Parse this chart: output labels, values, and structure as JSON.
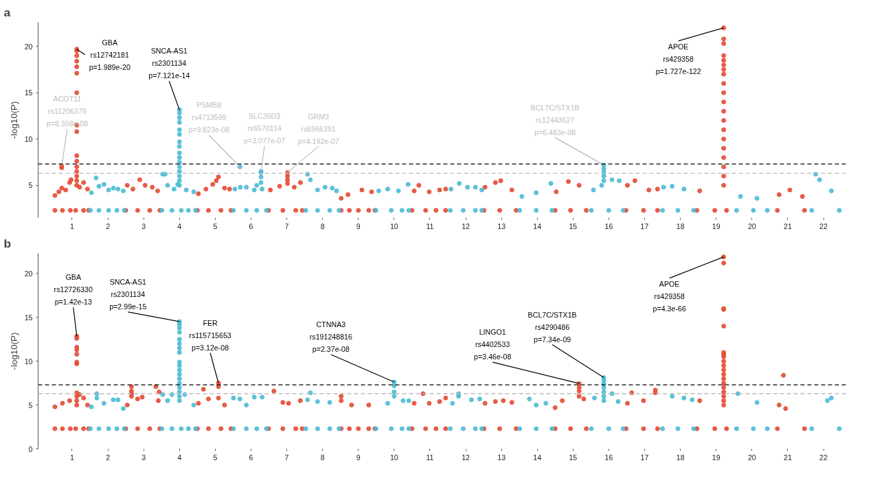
{
  "chart_data": [
    {
      "type": "scatter",
      "title": "a",
      "ylabel": "-log10(P)",
      "marker": "circle",
      "xlim": [
        0.05,
        22.7
      ],
      "ylim": [
        1.5,
        22.6
      ],
      "yticks": [
        5,
        10,
        15,
        20
      ],
      "xticks": [
        1,
        2,
        3,
        4,
        5,
        6,
        7,
        8,
        9,
        10,
        11,
        12,
        13,
        14,
        15,
        16,
        17,
        18,
        19,
        20,
        21,
        22
      ],
      "series": [
        {
          "color": "#e64b35",
          "x": [
            0.52,
            0.73,
            0.95,
            1.1,
            1.32,
            1.46,
            0.52,
            0.63,
            0.71,
            0.82,
            0.93,
            0.97,
            0.71,
            0.71,
            1.13,
            1.13,
            1.13,
            1.13,
            1.13,
            1.13,
            1.13,
            1.13,
            1.13,
            1.13,
            1.13,
            1.13,
            1.13,
            1.13,
            1.13,
            1.13,
            1.21,
            1.32,
            1.43,
            2.5,
            2.83,
            3.17,
            3.45,
            2.54,
            2.7,
            2.89,
            3.04,
            3.24,
            3.39,
            4.5,
            4.81,
            5.16,
            5.44,
            4.53,
            4.74,
            4.93,
            5.03,
            5.09,
            5.26,
            5.4,
            6.49,
            6.89,
            7.25,
            7.43,
            6.54,
            6.8,
            7.02,
            7.02,
            7.02,
            7.02,
            7.21,
            7.38,
            8.52,
            8.75,
            9.0,
            9.29,
            9.46,
            8.52,
            8.71,
            9.1,
            9.37,
            10.5,
            10.88,
            11.17,
            11.44,
            10.56,
            10.69,
            10.98,
            11.27,
            11.44,
            12.51,
            12.95,
            13.41,
            12.54,
            12.83,
            12.98,
            13.29,
            14.5,
            14.93,
            15.37,
            14.53,
            14.87,
            15.17,
            16.48,
            16.97,
            17.36,
            16.52,
            16.73,
            17.12,
            17.36,
            18.46,
            18.96,
            19.29,
            18.54,
            19.21,
            19.21,
            19.21,
            19.21,
            19.21,
            19.21,
            19.21,
            19.21,
            19.21,
            19.21,
            19.21,
            19.21,
            19.21,
            19.21,
            19.21,
            19.21,
            19.21,
            19.21,
            19.21,
            19.21,
            20.71,
            21.47,
            20.76,
            21.06,
            21.41
          ],
          "values": [
            2.3,
            2.3,
            2.3,
            2.3,
            2.3,
            2.3,
            3.9,
            4.3,
            4.7,
            4.5,
            5.3,
            5.6,
            7.08,
            6.9,
            19.7,
            19.5,
            19.0,
            18.4,
            17.8,
            17.1,
            15.0,
            11.5,
            10.8,
            8.2,
            7.6,
            7.0,
            6.5,
            6.0,
            5.5,
            5.0,
            4.8,
            5.3,
            4.6,
            2.3,
            2.3,
            2.3,
            2.3,
            5.0,
            4.6,
            5.6,
            5.0,
            4.8,
            4.4,
            2.3,
            2.3,
            2.3,
            2.3,
            4.1,
            4.6,
            5.1,
            5.5,
            5.9,
            4.7,
            4.6,
            2.3,
            2.3,
            2.3,
            2.3,
            4.5,
            4.9,
            6.38,
            6.0,
            5.6,
            5.2,
            4.8,
            5.3,
            2.3,
            2.3,
            2.3,
            2.3,
            2.3,
            3.6,
            4.0,
            4.5,
            4.3,
            2.3,
            2.3,
            2.3,
            2.3,
            4.4,
            5.0,
            4.3,
            4.5,
            4.6,
            2.3,
            2.3,
            2.3,
            4.8,
            5.3,
            5.5,
            4.5,
            2.3,
            2.3,
            2.3,
            4.3,
            5.4,
            5.0,
            2.3,
            2.3,
            2.3,
            5.0,
            5.5,
            4.5,
            4.6,
            2.3,
            2.3,
            2.3,
            4.4,
            22.0,
            20.8,
            20.3,
            19.0,
            18.5,
            18.0,
            17.5,
            17.0,
            16.0,
            15.0,
            14.0,
            13.0,
            12.0,
            11.0,
            10.0,
            9.0,
            8.0,
            7.0,
            6.0,
            5.0,
            2.3,
            2.3,
            4.0,
            4.5,
            3.8
          ]
        },
        {
          "color": "#4dbbd5",
          "x": [
            1.51,
            1.75,
            2.02,
            2.25,
            2.46,
            1.54,
            1.67,
            1.75,
            1.89,
            2.02,
            2.15,
            2.28,
            2.43,
            3.51,
            3.79,
            4.05,
            4.25,
            4.45,
            3.53,
            3.6,
            3.67,
            3.85,
            3.95,
            4.19,
            4.4,
            4.0,
            4.0,
            4.0,
            4.0,
            4.0,
            4.0,
            4.0,
            4.0,
            4.0,
            4.0,
            4.0,
            4.0,
            4.0,
            4.0,
            4.0,
            4.0,
            5.51,
            5.87,
            6.16,
            6.43,
            5.55,
            5.7,
            5.87,
            6.09,
            6.16,
            6.31,
            5.69,
            6.28,
            6.28,
            6.28,
            6.28,
            7.53,
            7.86,
            8.2,
            8.46,
            7.58,
            7.66,
            7.86,
            8.07,
            8.27,
            8.39,
            9.49,
            9.92,
            10.22,
            10.41,
            9.57,
            9.82,
            10.12,
            10.39,
            11.57,
            11.93,
            12.27,
            12.45,
            11.59,
            11.82,
            12.05,
            12.27,
            12.45,
            13.51,
            13.97,
            14.41,
            13.57,
            13.97,
            14.38,
            15.51,
            16.0,
            16.4,
            15.57,
            15.8,
            15.86,
            15.86,
            15.86,
            15.86,
            15.86,
            16.09,
            16.29,
            17.5,
            17.93,
            18.37,
            17.53,
            17.77,
            18.1,
            19.57,
            20.04,
            20.43,
            19.68,
            20.14,
            21.67,
            22.44,
            21.78,
            21.89,
            22.22
          ],
          "values": [
            2.3,
            2.3,
            2.3,
            2.3,
            2.3,
            4.2,
            5.8,
            4.9,
            5.1,
            4.5,
            4.7,
            4.6,
            4.4,
            2.3,
            2.3,
            2.3,
            2.3,
            2.3,
            6.2,
            6.2,
            5.0,
            4.6,
            5.1,
            4.5,
            4.3,
            13.15,
            12.8,
            12.3,
            11.8,
            11.0,
            10.5,
            9.7,
            9.2,
            8.5,
            8.0,
            7.5,
            7.0,
            6.5,
            6.0,
            5.5,
            5.0,
            2.3,
            2.3,
            2.3,
            2.3,
            4.6,
            4.8,
            4.8,
            4.5,
            5.0,
            4.6,
            7.0,
            6.51,
            6.4,
            5.9,
            5.3,
            2.3,
            2.3,
            2.3,
            2.3,
            6.2,
            5.6,
            4.5,
            4.8,
            4.7,
            4.4,
            2.3,
            2.3,
            2.3,
            2.3,
            4.4,
            4.6,
            4.4,
            5.1,
            2.3,
            2.3,
            2.3,
            2.3,
            4.6,
            5.2,
            4.8,
            4.8,
            4.5,
            2.3,
            2.3,
            2.3,
            3.8,
            4.2,
            5.2,
            2.3,
            2.3,
            2.3,
            4.5,
            5.0,
            7.19,
            6.8,
            6.4,
            6.0,
            5.5,
            5.6,
            5.5,
            2.3,
            2.3,
            2.3,
            4.8,
            4.9,
            4.6,
            2.3,
            2.3,
            2.3,
            3.8,
            3.6,
            2.3,
            2.3,
            6.2,
            5.6,
            4.4
          ]
        }
      ],
      "ref_lines": [
        {
          "axis": "y",
          "value": 7.3,
          "color": "#000000",
          "line_style": "dashed"
        },
        {
          "axis": "y",
          "value": 6.3,
          "color": "#bbbbbb",
          "line_style": "dashed"
        }
      ],
      "annotations": [
        {
          "text": "GBA\nrs12742181\np=1.989e-20",
          "x": 1.13,
          "y": 19.7
        },
        {
          "text": "ACOT11\nrs11206379\np=8.358e-08",
          "x": 0.71,
          "y": 7.08
        },
        {
          "text": "SNCA-AS1\nrs2301134\np=7.121e-14",
          "x": 4.0,
          "y": 13.15
        },
        {
          "text": "PSMB8\nrs4713599\np=9.823e-08",
          "x": 5.69,
          "y": 7.0
        },
        {
          "text": "SLC35D3\nrs6570114\np=3.077e-07",
          "x": 6.28,
          "y": 6.51
        },
        {
          "text": "GRM3\nrs6966391\np=4.192e-07",
          "x": 7.02,
          "y": 6.38
        },
        {
          "text": "BCL7C/STX1B\nrs12443627\np=6.483e-08",
          "x": 15.86,
          "y": 7.19
        },
        {
          "text": "APOE\nrs429358\np=1.727e-122",
          "x": 19.21,
          "y": 22.0
        }
      ]
    },
    {
      "type": "scatter",
      "title": "b",
      "ylabel": "-log10(P)",
      "marker": "circle",
      "xlim": [
        0.05,
        22.7
      ],
      "ylim": [
        0,
        22.3
      ],
      "yticks": [
        0,
        5,
        10,
        15,
        20
      ],
      "xticks": [
        1,
        2,
        3,
        4,
        5,
        6,
        7,
        8,
        9,
        10,
        11,
        12,
        13,
        14,
        15,
        16,
        17,
        18,
        19,
        20,
        21,
        22
      ],
      "series": [
        {
          "color": "#e64b35",
          "x": [
            0.52,
            0.73,
            0.95,
            1.1,
            1.32,
            1.46,
            0.52,
            0.73,
            0.93,
            1.21,
            1.32,
            1.43,
            1.13,
            1.13,
            1.13,
            1.13,
            1.13,
            1.13,
            1.13,
            1.13,
            1.13,
            1.13,
            1.13,
            2.5,
            2.83,
            3.17,
            3.45,
            2.54,
            2.66,
            2.66,
            2.66,
            2.66,
            2.83,
            2.96,
            3.34,
            3.43,
            3.41,
            4.5,
            4.81,
            5.16,
            5.44,
            4.53,
            4.67,
            4.81,
            5.09,
            5.09,
            5.09,
            5.26,
            6.49,
            6.89,
            7.25,
            7.43,
            6.64,
            6.89,
            7.05,
            7.38,
            8.52,
            8.75,
            9.0,
            9.29,
            9.46,
            8.52,
            8.52,
            8.81,
            9.29,
            10.5,
            10.88,
            11.17,
            11.44,
            10.81,
            10.56,
            10.98,
            11.27,
            11.44,
            12.51,
            12.95,
            13.41,
            12.54,
            12.83,
            13.05,
            13.29,
            14.5,
            14.93,
            15.37,
            14.5,
            14.7,
            15.17,
            15.17,
            15.17,
            15.17,
            15.3,
            16.48,
            16.97,
            17.36,
            16.52,
            16.64,
            16.97,
            17.3,
            17.3,
            18.46,
            18.96,
            19.29,
            18.54,
            19.21,
            19.21,
            19.21,
            19.21,
            19.21,
            19.21,
            19.21,
            19.21,
            19.21,
            19.21,
            19.21,
            19.21,
            19.21,
            19.21,
            19.21,
            19.21,
            19.21,
            19.21,
            19.21,
            20.71,
            21.47,
            20.76,
            20.94,
            20.88
          ],
          "values": [
            2.3,
            2.3,
            2.3,
            2.3,
            2.3,
            2.3,
            4.8,
            5.2,
            5.5,
            6.2,
            5.8,
            5.0,
            12.85,
            12.6,
            11.6,
            11.3,
            10.8,
            9.9,
            9.7,
            6.4,
            6.0,
            5.5,
            5.0,
            2.3,
            2.3,
            2.3,
            2.3,
            5.0,
            7.1,
            6.6,
            6.3,
            6.0,
            5.7,
            5.9,
            7.1,
            6.5,
            5.5,
            2.3,
            2.3,
            2.3,
            2.3,
            5.2,
            6.8,
            5.7,
            7.51,
            7.1,
            5.8,
            5.0,
            2.3,
            2.3,
            2.3,
            2.3,
            6.6,
            5.3,
            5.2,
            5.5,
            2.3,
            2.3,
            2.3,
            2.3,
            2.3,
            6.0,
            5.5,
            5.0,
            5.0,
            2.3,
            2.3,
            2.3,
            2.3,
            6.3,
            5.2,
            5.2,
            5.4,
            5.8,
            2.3,
            2.3,
            2.3,
            5.2,
            5.4,
            5.5,
            5.3,
            2.3,
            2.3,
            2.3,
            4.7,
            5.5,
            7.46,
            7.0,
            6.6,
            6.0,
            5.7,
            2.3,
            2.3,
            2.3,
            5.2,
            6.4,
            5.5,
            6.4,
            6.7,
            2.3,
            2.3,
            2.3,
            5.5,
            21.9,
            21.2,
            16.0,
            15.9,
            14.0,
            11.0,
            10.8,
            10.5,
            10.0,
            9.5,
            9.0,
            8.5,
            8.0,
            7.5,
            7.0,
            6.5,
            6.0,
            5.5,
            5.0,
            2.3,
            2.3,
            5.0,
            4.6,
            8.4
          ]
        },
        {
          "color": "#4dbbd5",
          "x": [
            1.51,
            1.75,
            2.02,
            2.25,
            2.46,
            1.54,
            1.69,
            1.69,
            1.89,
            2.15,
            2.28,
            2.43,
            3.51,
            3.79,
            4.05,
            4.25,
            4.45,
            3.53,
            3.79,
            3.67,
            4.15,
            4.4,
            4.0,
            4.0,
            4.0,
            4.0,
            4.0,
            4.0,
            4.0,
            4.0,
            4.0,
            4.0,
            4.0,
            4.0,
            4.0,
            4.0,
            4.0,
            4.0,
            4.0,
            4.0,
            5.51,
            5.87,
            6.16,
            6.43,
            5.51,
            5.69,
            6.09,
            6.31,
            5.87,
            7.53,
            7.86,
            8.2,
            8.46,
            7.66,
            7.58,
            7.86,
            8.2,
            9.49,
            9.92,
            10.22,
            10.41,
            10.0,
            10.0,
            10.0,
            10.0,
            9.82,
            10.25,
            10.41,
            11.57,
            11.93,
            12.27,
            12.45,
            11.8,
            11.8,
            12.16,
            12.39,
            11.63,
            13.51,
            13.97,
            14.41,
            13.78,
            13.97,
            14.24,
            15.51,
            16.0,
            16.4,
            15.86,
            15.86,
            15.86,
            15.86,
            15.86,
            15.86,
            15.86,
            15.6,
            16.09,
            16.26,
            17.5,
            17.93,
            18.37,
            17.77,
            18.1,
            18.33,
            19.57,
            20.04,
            20.43,
            19.61,
            20.14,
            21.67,
            22.44,
            22.22,
            22.11
          ],
          "values": [
            2.3,
            2.3,
            2.3,
            2.3,
            2.3,
            4.8,
            6.3,
            5.8,
            5.2,
            5.6,
            5.6,
            4.6,
            2.3,
            2.3,
            2.3,
            2.3,
            2.3,
            6.2,
            6.2,
            5.5,
            6.2,
            5.0,
            14.52,
            14.2,
            13.8,
            13.3,
            12.5,
            12.0,
            11.5,
            11.0,
            9.9,
            9.5,
            9.0,
            8.5,
            8.0,
            7.5,
            7.0,
            6.5,
            6.0,
            5.5,
            2.3,
            2.3,
            2.3,
            2.3,
            5.8,
            5.7,
            5.9,
            5.9,
            5.0,
            2.3,
            2.3,
            2.3,
            2.3,
            6.4,
            5.6,
            5.4,
            5.3,
            2.3,
            2.3,
            2.3,
            2.3,
            7.63,
            7.2,
            6.5,
            6.0,
            5.2,
            5.5,
            5.5,
            2.3,
            2.3,
            2.3,
            2.3,
            6.3,
            6.0,
            5.6,
            5.7,
            5.2,
            2.3,
            2.3,
            2.3,
            5.7,
            5.0,
            5.2,
            2.3,
            2.3,
            2.3,
            8.13,
            7.8,
            7.4,
            7.0,
            6.5,
            6.0,
            5.5,
            5.8,
            6.3,
            5.4,
            2.3,
            2.3,
            2.3,
            6.0,
            5.8,
            5.6,
            2.3,
            2.3,
            2.3,
            6.3,
            5.3,
            2.3,
            2.3,
            5.8,
            5.5
          ]
        }
      ],
      "ref_lines": [
        {
          "axis": "y",
          "value": 7.3,
          "color": "#000000",
          "line_style": "dashed"
        },
        {
          "axis": "y",
          "value": 6.3,
          "color": "#bbbbbb",
          "line_style": "dashed"
        }
      ],
      "annotations": [
        {
          "text": "GBA\nrs12726330\np=1.42e-13",
          "x": 1.13,
          "y": 12.85
        },
        {
          "text": "SNCA-AS1\nrs2301134\np=2.99e-15",
          "x": 4.0,
          "y": 14.52
        },
        {
          "text": "FER\nrs115715653\np=3.12e-08",
          "x": 5.09,
          "y": 7.51
        },
        {
          "text": "CTNNA3\nrs191248816\np=2.37e-08",
          "x": 10.0,
          "y": 7.63
        },
        {
          "text": "LINGO1\nrs4402533\np=3.46e-08",
          "x": 15.17,
          "y": 7.46
        },
        {
          "text": "BCL7C/STX1B\nrs4290486\np=7.34e-09",
          "x": 15.86,
          "y": 8.13
        },
        {
          "text": "APOE\nrs429358\np=4.3e-66",
          "x": 19.21,
          "y": 21.9
        }
      ]
    }
  ]
}
